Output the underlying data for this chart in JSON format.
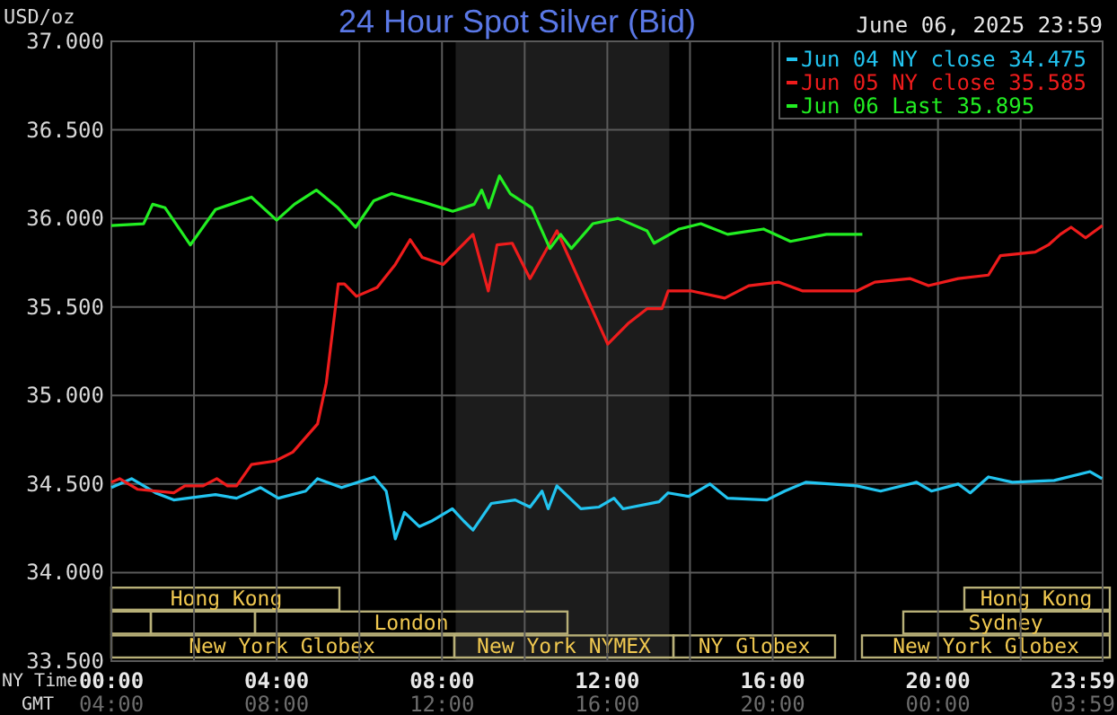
{
  "chart_data": {
    "type": "line",
    "title": "24 Hour Spot Silver (Bid)",
    "subtitle": "June 06, 2025 23:59",
    "ylabel": "USD/oz",
    "xlabel": "NY Time",
    "x2label": "GMT",
    "xlim": [
      0,
      23.983
    ],
    "xticks": [
      {
        "value": 0,
        "label": "00:00"
      },
      {
        "value": 2,
        "label": null
      },
      {
        "value": 4,
        "label": "04:00"
      },
      {
        "value": 6,
        "label": null
      },
      {
        "value": 8,
        "label": "08:00"
      },
      {
        "value": 10,
        "label": null
      },
      {
        "value": 12,
        "label": "12:00"
      },
      {
        "value": 14,
        "label": null
      },
      {
        "value": 16,
        "label": "16:00"
      },
      {
        "value": 18,
        "label": null
      },
      {
        "value": 20,
        "label": "20:00"
      },
      {
        "value": 22,
        "label": null
      },
      {
        "value": 23.983,
        "label": "23:59"
      }
    ],
    "x2lim": [
      "2025-06-06T04:00",
      "2025-06-07T03:59"
    ],
    "x2ticks": [
      {
        "value": "2025-06-06T04:00",
        "label": "04:00"
      },
      {
        "value": "2025-06-06T08:00",
        "label": "08:00"
      },
      {
        "value": "2025-06-06T12:00",
        "label": "12:00"
      },
      {
        "value": "2025-06-06T16:00",
        "label": "16:00"
      },
      {
        "value": "2025-06-06T20:00",
        "label": "20:00"
      },
      {
        "value": "2025-06-07T00:00",
        "label": "00:00"
      },
      {
        "value": "2025-06-07T03:59",
        "label": "03:59"
      }
    ],
    "ylim": [
      33.5,
      37
    ],
    "yticks": [
      {
        "value": 33.5,
        "label": "33.500"
      },
      {
        "value": 34,
        "label": "34.000"
      },
      {
        "value": 34.5,
        "label": "34.500"
      },
      {
        "value": 35,
        "label": "35.000"
      },
      {
        "value": 35.5,
        "label": "35.500"
      },
      {
        "value": 36,
        "label": "36.000"
      },
      {
        "value": 36.5,
        "label": "36.500"
      },
      {
        "value": 37,
        "label": "37.000"
      }
    ],
    "grid": true,
    "legend": "top right",
    "bands": [
      {
        "axis": "x",
        "from": 8.33,
        "to": 13.5,
        "color": "#1c1c1c"
      }
    ],
    "annotations": [
      "Hong Kong",
      "Hong Kong",
      "London",
      "Sydney",
      "New York Globex",
      "New York NYMEX",
      "NY Globex",
      "New York Globex"
    ],
    "series": [
      {
        "name": "Jun 04 NY close 34.475",
        "color": "#22c4f0",
        "x": [
          0,
          0.49,
          1.07,
          1.51,
          2.52,
          3.03,
          3.61,
          4.04,
          4.7,
          4.99,
          5.57,
          6.36,
          6.65,
          6.87,
          7.09,
          7.45,
          7.74,
          8.25,
          8.53,
          8.75,
          9.19,
          9.77,
          10.13,
          10.42,
          10.57,
          10.78,
          11.36,
          11.8,
          12.16,
          12.38,
          13.25,
          13.47,
          13.97,
          14.48,
          14.91,
          15.86,
          16.29,
          16.8,
          18.03,
          18.61,
          19.48,
          19.84,
          20.49,
          20.78,
          21.22,
          21.8,
          22.81,
          23.68,
          23.97
        ],
        "values": [
          34.48,
          34.53,
          34.45,
          34.41,
          34.44,
          34.42,
          34.48,
          34.42,
          34.46,
          34.53,
          34.48,
          34.54,
          34.46,
          34.19,
          34.34,
          34.26,
          34.29,
          34.36,
          34.29,
          34.24,
          34.39,
          34.41,
          34.37,
          34.46,
          34.36,
          34.49,
          34.36,
          34.37,
          34.42,
          34.36,
          34.4,
          34.45,
          34.43,
          34.5,
          34.42,
          34.41,
          34.46,
          34.51,
          34.49,
          34.46,
          34.51,
          34.46,
          34.5,
          34.45,
          34.54,
          34.51,
          34.52,
          34.57,
          34.53
        ]
      },
      {
        "name": "Jun 05 NY close 35.585",
        "color": "#ee1c1c",
        "x": [
          0,
          0.2,
          0.64,
          1.51,
          1.78,
          2.22,
          2.55,
          2.81,
          3.03,
          3.39,
          3.96,
          4.39,
          4.99,
          5.2,
          5.49,
          5.64,
          5.93,
          6.43,
          6.87,
          7.23,
          7.52,
          8.03,
          8.75,
          9.12,
          9.33,
          9.7,
          10.13,
          10.42,
          10.78,
          11.07,
          12.01,
          12.52,
          12.96,
          13.32,
          13.47,
          14.04,
          14.84,
          15.42,
          16.14,
          16.73,
          18.03,
          18.47,
          19.33,
          19.77,
          20.49,
          21.22,
          21.51,
          22.35,
          22.67,
          22.96,
          23.22,
          23.57,
          23.98
        ],
        "values": [
          34.51,
          34.53,
          34.47,
          34.45,
          34.49,
          34.49,
          34.53,
          34.49,
          34.49,
          34.61,
          34.63,
          34.68,
          34.84,
          35.07,
          35.63,
          35.63,
          35.56,
          35.61,
          35.74,
          35.88,
          35.78,
          35.74,
          35.91,
          35.59,
          35.85,
          35.86,
          35.66,
          35.78,
          35.93,
          35.78,
          35.29,
          35.41,
          35.49,
          35.49,
          35.59,
          35.59,
          35.55,
          35.62,
          35.64,
          35.59,
          35.59,
          35.64,
          35.66,
          35.62,
          35.66,
          35.68,
          35.79,
          35.81,
          35.85,
          35.91,
          35.95,
          35.89,
          35.96
        ]
      },
      {
        "name": "Jun 06 Last 35.895",
        "color": "#22ee22",
        "x": [
          0,
          0.78,
          1,
          1.3,
          1.91,
          2.52,
          3.39,
          4,
          4.43,
          4.96,
          5.48,
          5.91,
          6.35,
          6.78,
          7.57,
          8.26,
          8.78,
          8.96,
          9.13,
          9.39,
          9.65,
          10.17,
          10.61,
          10.87,
          11.13,
          11.65,
          12.26,
          12.96,
          13.13,
          13.74,
          14.26,
          14.91,
          15.78,
          16.43,
          17.3,
          18.17
        ],
        "values": [
          35.96,
          35.97,
          36.08,
          36.06,
          35.85,
          36.05,
          36.12,
          35.99,
          36.08,
          36.16,
          36.06,
          35.95,
          36.1,
          36.14,
          36.09,
          36.04,
          36.08,
          36.16,
          36.06,
          36.24,
          36.14,
          36.06,
          35.83,
          35.91,
          35.83,
          35.97,
          36,
          35.93,
          35.86,
          35.94,
          35.97,
          35.91,
          35.94,
          35.87,
          35.91,
          35.91
        ]
      }
    ]
  }
}
